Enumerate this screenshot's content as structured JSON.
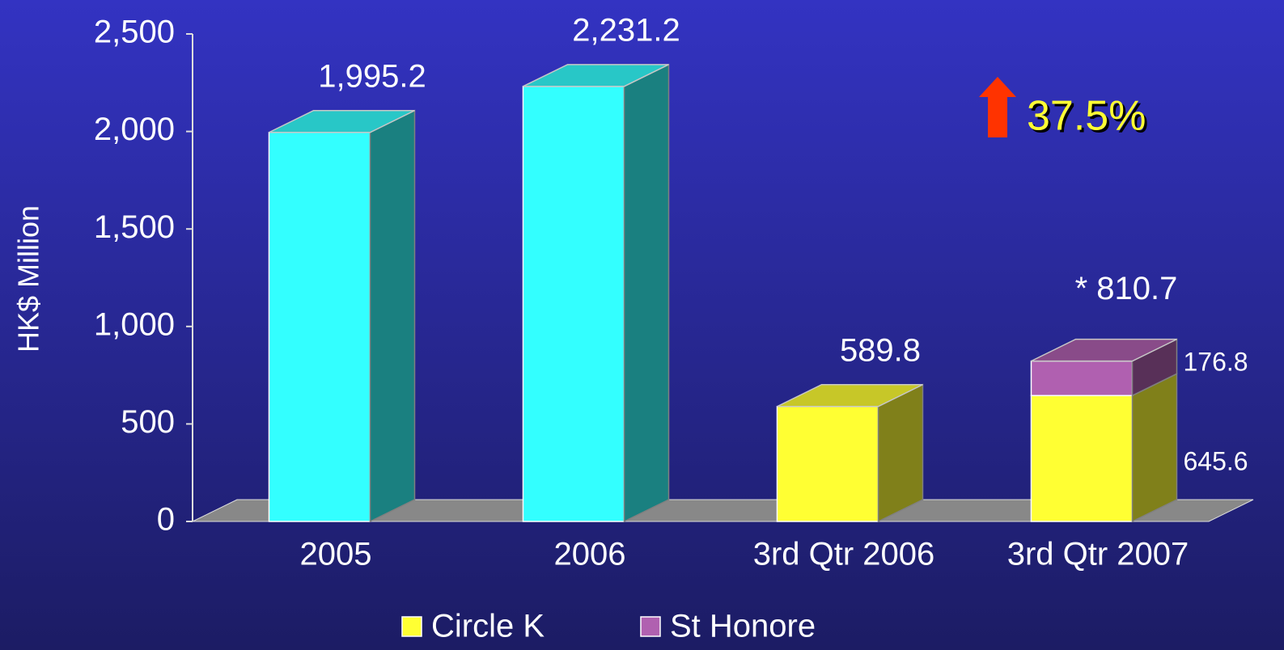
{
  "chart_data": {
    "type": "bar3d_stacked",
    "y_label": "HK$ Million",
    "categories": [
      "2005",
      "2006",
      "3rd Qtr 2006",
      "3rd Qtr 2007"
    ],
    "series": [
      {
        "name": "Circle K",
        "color": "#ffff33",
        "point_colors": [
          "#33ffff",
          "#33ffff",
          "#ffff33",
          "#ffff33"
        ],
        "values": [
          1995.2,
          2231.2,
          589.8,
          645.6
        ],
        "value_labels": [
          "1,995.2",
          "2,231.2",
          "589.8",
          "645.6"
        ]
      },
      {
        "name": "St Honore",
        "color": "#b060b0",
        "point_colors": [
          "#b060b0",
          "#b060b0",
          "#b060b0",
          "#b060b0"
        ],
        "values": [
          null,
          null,
          null,
          176.8
        ],
        "value_labels": [
          null,
          null,
          null,
          "176.8"
        ]
      }
    ],
    "ylim": [
      0,
      2500
    ],
    "yticks": [
      0,
      500,
      {
        "value": 1000,
        "label": "1,000"
      },
      {
        "value": 1500,
        "label": "1,500"
      },
      {
        "value": 2000,
        "label": "2,000"
      },
      {
        "value": 2500,
        "label": "2,500"
      }
    ],
    "annotations": [
      {
        "text": "* 810.7"
      },
      {
        "text": "37.5%",
        "color": "#ffff33",
        "arrow_color": "#ff3300"
      }
    ]
  }
}
